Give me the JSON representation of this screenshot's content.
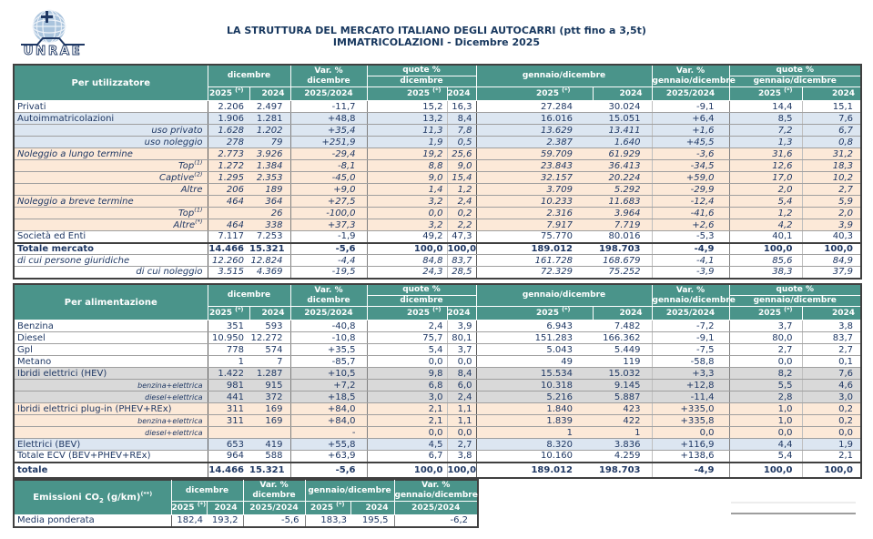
{
  "logo": {
    "text": "UNRAE"
  },
  "title": {
    "line1": "LA STRUTTURA DEL MERCATO ITALIANO DEGLI AUTOCARRI (ptt fino a 3,5t)",
    "line2": "IMMATRICOLAZIONI - Dicembre 2025"
  },
  "colors": {
    "header_bg": "#4a948a",
    "row_blue": "#dce6f1",
    "row_peach": "#fce9d8",
    "row_gray": "#d9d9d9",
    "text": "#1f3864",
    "title": "#17375e",
    "border_dark": "#404040"
  },
  "hdr": {
    "var": "Var. %",
    "dicembre": "dicembre",
    "quote": "quote %",
    "gen": "gennaio/dicembre",
    "y2025": "2025",
    "star": "(*)",
    "y2024": "2024",
    "ratio": "2025/2024"
  },
  "table1": {
    "title": "Per utilizzatore",
    "rows": [
      {
        "label": "Privati",
        "cls": "",
        "values": [
          "2.206",
          "2.497",
          "-11,7",
          "15,2",
          "16,3",
          "27.284",
          "30.024",
          "-9,1",
          "14,4",
          "15,1"
        ]
      },
      {
        "label": "Autoimmatricolazioni",
        "cls": "r-blue",
        "values": [
          "1.906",
          "1.281",
          "+48,8",
          "13,2",
          "8,4",
          "16.016",
          "15.051",
          "+6,4",
          "8,5",
          "7,6"
        ]
      },
      {
        "label": "uso privato",
        "cls": "r-blue ind ita",
        "values": [
          "1.628",
          "1.202",
          "+35,4",
          "11,3",
          "7,8",
          "13.629",
          "13.411",
          "+1,6",
          "7,2",
          "6,7"
        ]
      },
      {
        "label": "uso noleggio",
        "cls": "r-blue ind ita",
        "values": [
          "278",
          "79",
          "+251,9",
          "1,9",
          "0,5",
          "2.387",
          "1.640",
          "+45,5",
          "1,3",
          "0,8"
        ]
      },
      {
        "label": "Noleggio a lungo termine",
        "cls": "r-peach ita",
        "values": [
          "2.773",
          "3.926",
          "-29,4",
          "19,2",
          "25,6",
          "59.709",
          "61.929",
          "-3,6",
          "31,6",
          "31,2"
        ]
      },
      {
        "label": "Top",
        "sup": "(1)",
        "cls": "r-peach ind ita",
        "values": [
          "1.272",
          "1.384",
          "-8,1",
          "8,8",
          "9,0",
          "23.843",
          "36.413",
          "-34,5",
          "12,6",
          "18,3"
        ]
      },
      {
        "label": "Captive",
        "sup": "(2)",
        "cls": "r-peach ind ita",
        "values": [
          "1.295",
          "2.353",
          "-45,0",
          "9,0",
          "15,4",
          "32.157",
          "20.224",
          "+59,0",
          "17,0",
          "10,2"
        ]
      },
      {
        "label": "Altre",
        "cls": "r-peach ind ita",
        "values": [
          "206",
          "189",
          "+9,0",
          "1,4",
          "1,2",
          "3.709",
          "5.292",
          "-29,9",
          "2,0",
          "2,7"
        ]
      },
      {
        "label": "Noleggio a breve termine",
        "cls": "r-peach ita",
        "values": [
          "464",
          "364",
          "+27,5",
          "3,2",
          "2,4",
          "10.233",
          "11.683",
          "-12,4",
          "5,4",
          "5,9"
        ]
      },
      {
        "label": "Top",
        "sup": "(1)",
        "cls": "r-peach ind ita",
        "values": [
          "",
          "26",
          "-100,0",
          "0,0",
          "0,2",
          "2.316",
          "3.964",
          "-41,6",
          "1,2",
          "2,0"
        ]
      },
      {
        "label": "Altre",
        "sup": "(*)",
        "cls": "r-peach ind ita",
        "values": [
          "464",
          "338",
          "+37,3",
          "3,2",
          "2,2",
          "7.917",
          "7.719",
          "+2,6",
          "4,2",
          "3,9"
        ]
      },
      {
        "label": "Società ed Enti",
        "cls": "",
        "values": [
          "7.117",
          "7.253",
          "-1,9",
          "49,2",
          "47,3",
          "75.770",
          "80.016",
          "-5,3",
          "40,1",
          "40,3"
        ]
      },
      {
        "label": "Totale mercato",
        "cls": "bold dark-top",
        "values": [
          "14.466",
          "15.321",
          "-5,6",
          "100,0",
          "100,0",
          "189.012",
          "198.703",
          "-4,9",
          "100,0",
          "100,0"
        ]
      },
      {
        "label": "di cui persone giuridiche",
        "cls": "ita",
        "values": [
          "12.260",
          "12.824",
          "-4,4",
          "84,8",
          "83,7",
          "161.728",
          "168.679",
          "-4,1",
          "85,6",
          "84,9"
        ]
      },
      {
        "label": "di cui noleggio",
        "cls": "ind ita",
        "values": [
          "3.515",
          "4.369",
          "-19,5",
          "24,3",
          "28,5",
          "72.329",
          "75.252",
          "-3,9",
          "38,3",
          "37,9"
        ]
      }
    ]
  },
  "table2": {
    "title": "Per alimentazione",
    "rows": [
      {
        "label": "Benzina",
        "cls": "",
        "values": [
          "351",
          "593",
          "-40,8",
          "2,4",
          "3,9",
          "6.943",
          "7.482",
          "-7,2",
          "3,7",
          "3,8"
        ]
      },
      {
        "label": "Diesel",
        "cls": "",
        "values": [
          "10.950",
          "12.272",
          "-10,8",
          "75,7",
          "80,1",
          "151.283",
          "166.362",
          "-9,1",
          "80,0",
          "83,7"
        ]
      },
      {
        "label": "Gpl",
        "cls": "",
        "values": [
          "778",
          "574",
          "+35,5",
          "5,4",
          "3,7",
          "5.043",
          "5.449",
          "-7,5",
          "2,7",
          "2,7"
        ]
      },
      {
        "label": "Metano",
        "cls": "",
        "values": [
          "1",
          "7",
          "-85,7",
          "0,0",
          "0,0",
          "49",
          "119",
          "-58,8",
          "0,0",
          "0,1"
        ]
      },
      {
        "label": "Ibridi elettrici (HEV)",
        "cls": "r-gray",
        "values": [
          "1.422",
          "1.287",
          "+10,5",
          "9,8",
          "8,4",
          "15.534",
          "15.032",
          "+3,3",
          "8,2",
          "7,6"
        ]
      },
      {
        "label": "benzina+elettrica",
        "cls": "r-gray ind small",
        "values": [
          "981",
          "915",
          "+7,2",
          "6,8",
          "6,0",
          "10.318",
          "9.145",
          "+12,8",
          "5,5",
          "4,6"
        ]
      },
      {
        "label": "diesel+elettrica",
        "cls": "r-gray ind small",
        "values": [
          "441",
          "372",
          "+18,5",
          "3,0",
          "2,4",
          "5.216",
          "5.887",
          "-11,4",
          "2,8",
          "3,0"
        ]
      },
      {
        "label": "Ibridi elettrici plug-in (PHEV+REx)",
        "cls": "r-peach",
        "values": [
          "311",
          "169",
          "+84,0",
          "2,1",
          "1,1",
          "1.840",
          "423",
          "+335,0",
          "1,0",
          "0,2"
        ]
      },
      {
        "label": "benzina+elettrica",
        "cls": "r-peach ind small",
        "values": [
          "311",
          "169",
          "+84,0",
          "2,1",
          "1,1",
          "1.839",
          "422",
          "+335,8",
          "1,0",
          "0,2"
        ]
      },
      {
        "label": "diesel+elettrica",
        "cls": "r-peach ind small",
        "values": [
          "",
          "",
          "-",
          "0,0",
          "0,0",
          "1",
          "1",
          "0,0",
          "0,0",
          "0,0"
        ]
      },
      {
        "label": "Elettrici (BEV)",
        "cls": "r-blue",
        "values": [
          "653",
          "419",
          "+55,8",
          "4,5",
          "2,7",
          "8.320",
          "3.836",
          "+116,9",
          "4,4",
          "1,9"
        ]
      },
      {
        "label": "Totale ECV (BEV+PHEV+REx)",
        "cls": "",
        "values": [
          "964",
          "588",
          "+63,9",
          "6,7",
          "3,8",
          "10.160",
          "4.259",
          "+138,6",
          "5,4",
          "2,1"
        ]
      },
      {
        "label": "totale",
        "cls": "bold tall dark-top",
        "values": [
          "14.466",
          "15.321",
          "-5,6",
          "100,0",
          "100,0",
          "189.012",
          "198.703",
          "-4,9",
          "100,0",
          "100,0"
        ]
      }
    ]
  },
  "table3": {
    "title_part1": "Emissioni CO",
    "title_sub": "2",
    "title_part2": " (g/km)",
    "title_sup": "(**)",
    "rows": [
      {
        "label": "Media ponderata",
        "cls": "",
        "values": [
          "182,4",
          "193,2",
          "-5,6",
          "183,3",
          "195,5",
          "-6,2"
        ]
      }
    ]
  }
}
